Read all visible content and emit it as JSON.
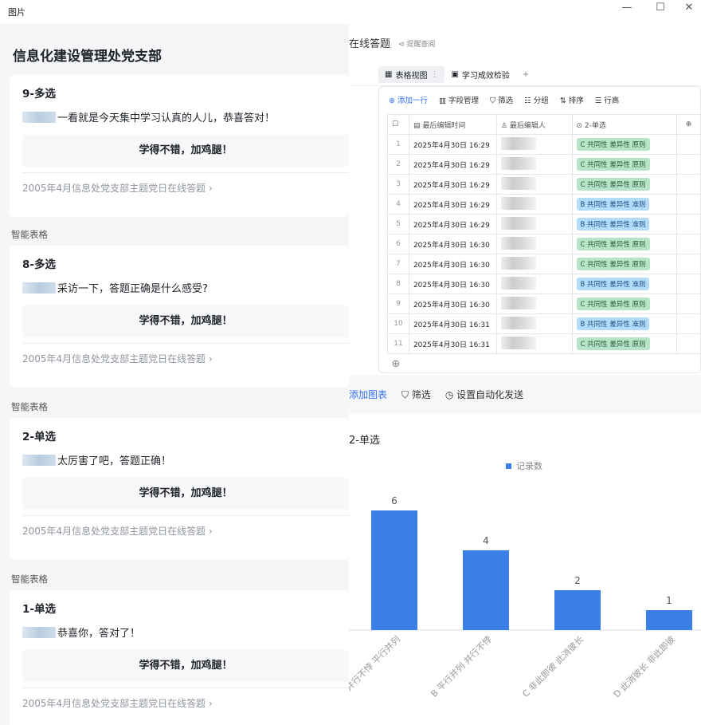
{
  "window": {
    "title": "图片",
    "controls": [
      "—",
      "☐",
      "✕"
    ]
  },
  "right": {
    "header_title": "在线答题",
    "header_hint": "提醒查阅",
    "tabs": [
      {
        "label": "表格视图",
        "active": true
      },
      {
        "label": "学习成效检验",
        "active": false
      }
    ],
    "add_tab": "+",
    "toolbar": {
      "add_row": "添加一行",
      "fields": "字段管理",
      "filter": "筛选",
      "group": "分组",
      "sort": "排序",
      "row_height": "行高"
    },
    "columns": [
      "最后编辑时间",
      "最后编辑人",
      "2-单选"
    ],
    "rows": [
      {
        "n": "1",
        "time": "2025年4月30日 16:29",
        "choice": "C 共同性  差异性  原则",
        "type": "C"
      },
      {
        "n": "2",
        "time": "2025年4月30日 16:29",
        "choice": "C 共同性  差异性  原则",
        "type": "C"
      },
      {
        "n": "3",
        "time": "2025年4月30日 16:29",
        "choice": "C 共同性  差异性  原则",
        "type": "C"
      },
      {
        "n": "4",
        "time": "2025年4月30日 16:29",
        "choice": "B 共同性  差异性  准则",
        "type": "B"
      },
      {
        "n": "5",
        "time": "2025年4月30日 16:29",
        "choice": "B 共同性  差异性  准则",
        "type": "B"
      },
      {
        "n": "6",
        "time": "2025年4月30日 16:30",
        "choice": "C 共同性  差异性  原则",
        "type": "C"
      },
      {
        "n": "7",
        "time": "2025年4月30日 16:30",
        "choice": "C 共同性  差异性  原则",
        "type": "C"
      },
      {
        "n": "8",
        "time": "2025年4月30日 16:30",
        "choice": "B 共同性  差异性  准则",
        "type": "B"
      },
      {
        "n": "9",
        "time": "2025年4月30日 16:30",
        "choice": "C 共同性  差异性  原则",
        "type": "C"
      },
      {
        "n": "10",
        "time": "2025年4月30日 16:31",
        "choice": "B 共同性  差异性  准则",
        "type": "B"
      },
      {
        "n": "11",
        "time": "2025年4月30日 16:31",
        "choice": "C 共同性  差异性  原则",
        "type": "C"
      }
    ],
    "chart_toolbar": {
      "add_chart": "添加图表",
      "filter": "筛选",
      "auto_send": "设置自动化发送"
    }
  },
  "chart_data": {
    "type": "bar",
    "title": "2-单选",
    "legend": "记录数",
    "legend_position": "top",
    "color": "#3b7ee8",
    "categories": [
      "A 并行不悖 平行并列",
      "B 平行并列 并行不悖",
      "C 非此即彼 此消彼长",
      "D 此消彼长 非此即彼"
    ],
    "values": [
      6,
      4,
      2,
      1
    ],
    "ylim": [
      0,
      6.5
    ],
    "grid": false
  },
  "left": {
    "group_title": "信息化建设管理处党支部",
    "source_label": "智能表格",
    "cards": [
      {
        "question": "9-多选",
        "message": "一看就是今天集中学习认真的人儿，恭喜答对！",
        "button": "学得不错，加鸡腿！",
        "footer": "2005年4月信息处党支部主题党日在线答题"
      },
      {
        "question": "8-多选",
        "message": "采访一下，答题正确是什么感受?",
        "button": "学得不错，加鸡腿！",
        "footer": "2005年4月信息处党支部主题党日在线答题"
      },
      {
        "question": "2-单选",
        "message": "太厉害了吧，答题正确！",
        "button": "学得不错，加鸡腿！",
        "footer": "2005年4月信息处党支部主题党日在线答题"
      },
      {
        "question": "1-单选",
        "message": "恭喜你，答对了！",
        "button": "学得不错，加鸡腿！",
        "footer": "2005年4月信息处党支部主题党日在线答题"
      }
    ]
  }
}
